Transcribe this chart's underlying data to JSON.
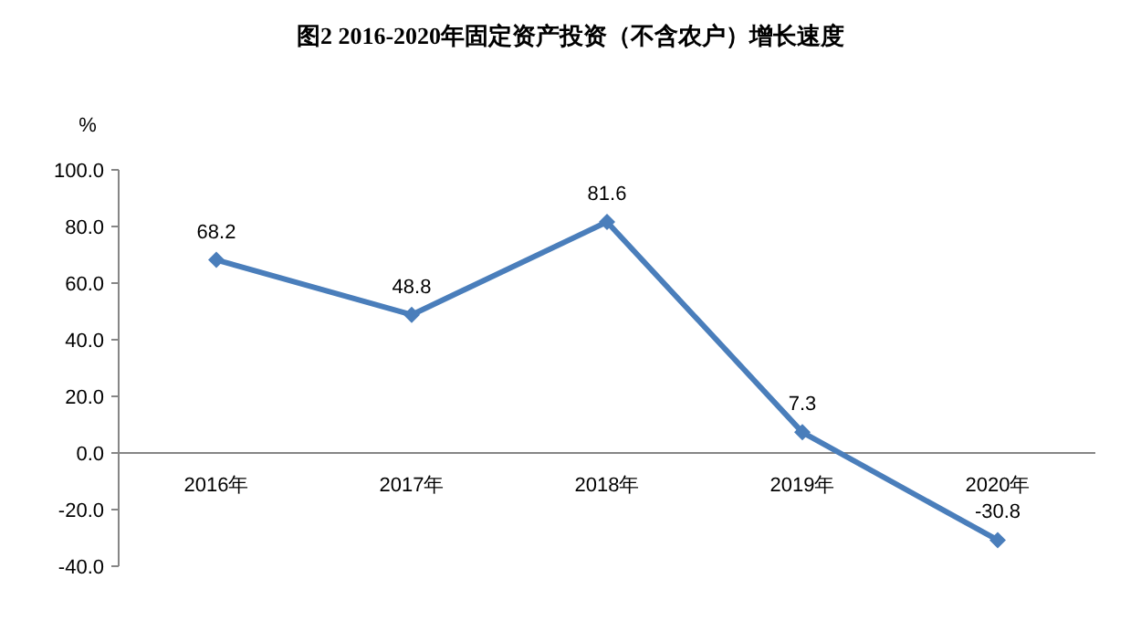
{
  "chart_data": {
    "type": "line",
    "title": "图2 2016-2020年固定资产投资（不含农户）增长速度",
    "ylabel": "%",
    "categories": [
      "2016年",
      "2017年",
      "2018年",
      "2019年",
      "2020年"
    ],
    "series": [
      {
        "color": "#4a7ebb",
        "values": [
          68.2,
          48.8,
          81.6,
          7.3,
          -30.8
        ]
      }
    ],
    "ylim": [
      -40,
      100
    ],
    "yticks": [
      {
        "value": -40,
        "label": "-40.0"
      },
      {
        "value": -20,
        "label": "-20.0"
      },
      {
        "value": 0,
        "label": "0.0"
      },
      {
        "value": 20,
        "label": "20.0"
      },
      {
        "value": 40,
        "label": "40.0"
      },
      {
        "value": 60,
        "label": "60.0"
      },
      {
        "value": 80,
        "label": "80.0"
      },
      {
        "value": 100,
        "label": "100.0"
      }
    ],
    "data_labels": true,
    "marker": "diamond",
    "line_style": "solid",
    "grid": false
  }
}
